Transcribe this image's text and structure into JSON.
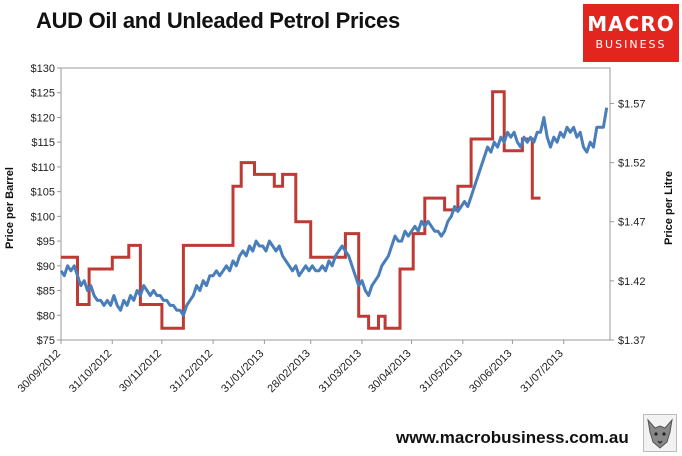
{
  "logo": {
    "line1": "MACRO",
    "line2": "BUSINESS"
  },
  "site_url": "www.macrobusiness.com.au",
  "colors": {
    "oil": "#4a7ebb",
    "petrol": "#be3a34",
    "logo_bg": "#e2261f"
  },
  "chart_data": {
    "type": "line",
    "title": "AUD Oil and Unleaded Petrol Prices",
    "ylabel_left": "Price per Barrel",
    "ylabel_right": "Price per Litre",
    "x_tick_labels": [
      "30/09/2012",
      "31/10/2012",
      "30/11/2012",
      "31/12/2012",
      "31/01/2013",
      "28/02/2013",
      "31/03/2013",
      "30/04/2013",
      "31/05/2013",
      "30/06/2013",
      "31/07/2013"
    ],
    "xlim": [
      "2012-09-30",
      "2013-08-28"
    ],
    "ylim_left": [
      75,
      130
    ],
    "ylim_right": [
      1.37,
      1.6
    ],
    "y_ticks_left": [
      "$75",
      "$80",
      "$85",
      "$90",
      "$95",
      "$100",
      "$105",
      "$110",
      "$115",
      "$120",
      "$125",
      "$130"
    ],
    "y_ticks_right": [
      "$1.37",
      "$1.42",
      "$1.47",
      "$1.52",
      "$1.57"
    ],
    "legend": "none",
    "grid": false,
    "series": [
      {
        "axis": "left",
        "points": [
          [
            "2012-09-30",
            89
          ],
          [
            "2012-10-02",
            88
          ],
          [
            "2012-10-04",
            90
          ],
          [
            "2012-10-06",
            89
          ],
          [
            "2012-10-08",
            90
          ],
          [
            "2012-10-10",
            88
          ],
          [
            "2012-10-12",
            86
          ],
          [
            "2012-10-14",
            87
          ],
          [
            "2012-10-16",
            85
          ],
          [
            "2012-10-18",
            86
          ],
          [
            "2012-10-20",
            84
          ],
          [
            "2012-10-22",
            83
          ],
          [
            "2012-10-24",
            83
          ],
          [
            "2012-10-26",
            82
          ],
          [
            "2012-10-28",
            83
          ],
          [
            "2012-10-30",
            82
          ],
          [
            "2012-11-01",
            84
          ],
          [
            "2012-11-03",
            82
          ],
          [
            "2012-11-05",
            81
          ],
          [
            "2012-11-07",
            83
          ],
          [
            "2012-11-09",
            82
          ],
          [
            "2012-11-11",
            84
          ],
          [
            "2012-11-13",
            83
          ],
          [
            "2012-11-15",
            85
          ],
          [
            "2012-11-17",
            84
          ],
          [
            "2012-11-19",
            86
          ],
          [
            "2012-11-21",
            85
          ],
          [
            "2012-11-23",
            84
          ],
          [
            "2012-11-25",
            85
          ],
          [
            "2012-11-27",
            84
          ],
          [
            "2012-11-29",
            84
          ],
          [
            "2012-12-01",
            83
          ],
          [
            "2012-12-03",
            83
          ],
          [
            "2012-12-05",
            82
          ],
          [
            "2012-12-07",
            82
          ],
          [
            "2012-12-09",
            81
          ],
          [
            "2012-12-11",
            81
          ],
          [
            "2012-12-13",
            80
          ],
          [
            "2012-12-15",
            82
          ],
          [
            "2012-12-17",
            83
          ],
          [
            "2012-12-19",
            84
          ],
          [
            "2012-12-21",
            86
          ],
          [
            "2012-12-23",
            85
          ],
          [
            "2012-12-25",
            87
          ],
          [
            "2012-12-27",
            86
          ],
          [
            "2012-12-29",
            88
          ],
          [
            "2012-12-31",
            88
          ],
          [
            "2013-01-02",
            89
          ],
          [
            "2013-01-04",
            88
          ],
          [
            "2013-01-06",
            89
          ],
          [
            "2013-01-08",
            90
          ],
          [
            "2013-01-10",
            89
          ],
          [
            "2013-01-12",
            91
          ],
          [
            "2013-01-14",
            90
          ],
          [
            "2013-01-16",
            92
          ],
          [
            "2013-01-18",
            93
          ],
          [
            "2013-01-20",
            92
          ],
          [
            "2013-01-22",
            94
          ],
          [
            "2013-01-24",
            93
          ],
          [
            "2013-01-26",
            95
          ],
          [
            "2013-01-28",
            94
          ],
          [
            "2013-01-30",
            94
          ],
          [
            "2013-02-01",
            93
          ],
          [
            "2013-02-03",
            95
          ],
          [
            "2013-02-05",
            94
          ],
          [
            "2013-02-07",
            93
          ],
          [
            "2013-02-09",
            94
          ],
          [
            "2013-02-11",
            92
          ],
          [
            "2013-02-13",
            91
          ],
          [
            "2013-02-15",
            90
          ],
          [
            "2013-02-17",
            89
          ],
          [
            "2013-02-19",
            90
          ],
          [
            "2013-02-21",
            88
          ],
          [
            "2013-02-23",
            89
          ],
          [
            "2013-02-25",
            90
          ],
          [
            "2013-02-27",
            89
          ],
          [
            "2013-03-01",
            90
          ],
          [
            "2013-03-03",
            89
          ],
          [
            "2013-03-05",
            89
          ],
          [
            "2013-03-07",
            90
          ],
          [
            "2013-03-09",
            89
          ],
          [
            "2013-03-11",
            91
          ],
          [
            "2013-03-13",
            90
          ],
          [
            "2013-03-15",
            92
          ],
          [
            "2013-03-17",
            93
          ],
          [
            "2013-03-19",
            94
          ],
          [
            "2013-03-21",
            93
          ],
          [
            "2013-03-23",
            92
          ],
          [
            "2013-03-25",
            90
          ],
          [
            "2013-03-27",
            88
          ],
          [
            "2013-03-29",
            86
          ],
          [
            "2013-03-31",
            87
          ],
          [
            "2013-04-02",
            85
          ],
          [
            "2013-04-04",
            84
          ],
          [
            "2013-04-06",
            86
          ],
          [
            "2013-04-08",
            87
          ],
          [
            "2013-04-10",
            88
          ],
          [
            "2013-04-12",
            90
          ],
          [
            "2013-04-14",
            91
          ],
          [
            "2013-04-16",
            92
          ],
          [
            "2013-04-18",
            94
          ],
          [
            "2013-04-20",
            96
          ],
          [
            "2013-04-22",
            95
          ],
          [
            "2013-04-24",
            95
          ],
          [
            "2013-04-26",
            97
          ],
          [
            "2013-04-28",
            96
          ],
          [
            "2013-04-30",
            97
          ],
          [
            "2013-05-02",
            98
          ],
          [
            "2013-05-04",
            97
          ],
          [
            "2013-05-06",
            99
          ],
          [
            "2013-05-08",
            98
          ],
          [
            "2013-05-10",
            99
          ],
          [
            "2013-05-12",
            98
          ],
          [
            "2013-05-14",
            97
          ],
          [
            "2013-05-16",
            97
          ],
          [
            "2013-05-18",
            96
          ],
          [
            "2013-05-20",
            97
          ],
          [
            "2013-05-22",
            99
          ],
          [
            "2013-05-24",
            100
          ],
          [
            "2013-05-26",
            102
          ],
          [
            "2013-05-28",
            101
          ],
          [
            "2013-05-30",
            102
          ],
          [
            "2013-06-01",
            103
          ],
          [
            "2013-06-03",
            102
          ],
          [
            "2013-06-05",
            104
          ],
          [
            "2013-06-07",
            106
          ],
          [
            "2013-06-09",
            108
          ],
          [
            "2013-06-11",
            110
          ],
          [
            "2013-06-13",
            112
          ],
          [
            "2013-06-15",
            114
          ],
          [
            "2013-06-17",
            113
          ],
          [
            "2013-06-19",
            115
          ],
          [
            "2013-06-21",
            114
          ],
          [
            "2013-06-23",
            116
          ],
          [
            "2013-06-25",
            115
          ],
          [
            "2013-06-27",
            117
          ],
          [
            "2013-06-29",
            116
          ],
          [
            "2013-07-01",
            117
          ],
          [
            "2013-07-03",
            115
          ],
          [
            "2013-07-05",
            114
          ],
          [
            "2013-07-07",
            116
          ],
          [
            "2013-07-09",
            115
          ],
          [
            "2013-07-11",
            116
          ],
          [
            "2013-07-13",
            115
          ],
          [
            "2013-07-15",
            117
          ],
          [
            "2013-07-17",
            117
          ],
          [
            "2013-07-19",
            120
          ],
          [
            "2013-07-21",
            116
          ],
          [
            "2013-07-23",
            114
          ],
          [
            "2013-07-25",
            116
          ],
          [
            "2013-07-27",
            115
          ],
          [
            "2013-07-29",
            117
          ],
          [
            "2013-07-31",
            116
          ],
          [
            "2013-08-02",
            118
          ],
          [
            "2013-08-04",
            117
          ],
          [
            "2013-08-06",
            118
          ],
          [
            "2013-08-08",
            116
          ],
          [
            "2013-08-10",
            117
          ],
          [
            "2013-08-12",
            114
          ],
          [
            "2013-08-14",
            113
          ],
          [
            "2013-08-16",
            115
          ],
          [
            "2013-08-18",
            114
          ],
          [
            "2013-08-20",
            118
          ],
          [
            "2013-08-22",
            118
          ],
          [
            "2013-08-24",
            118
          ],
          [
            "2013-08-26",
            122
          ]
        ]
      },
      {
        "axis": "right",
        "points": [
          [
            "2012-09-30",
            1.44
          ],
          [
            "2012-10-10",
            1.44
          ],
          [
            "2012-10-10",
            1.4
          ],
          [
            "2012-10-17",
            1.4
          ],
          [
            "2012-10-17",
            1.43
          ],
          [
            "2012-10-31",
            1.43
          ],
          [
            "2012-10-31",
            1.44
          ],
          [
            "2012-11-10",
            1.44
          ],
          [
            "2012-11-10",
            1.45
          ],
          [
            "2012-11-17",
            1.45
          ],
          [
            "2012-11-17",
            1.4
          ],
          [
            "2012-11-30",
            1.4
          ],
          [
            "2012-11-30",
            1.38
          ],
          [
            "2012-12-13",
            1.38
          ],
          [
            "2012-12-13",
            1.45
          ],
          [
            "2013-01-12",
            1.45
          ],
          [
            "2013-01-12",
            1.5
          ],
          [
            "2013-01-17",
            1.5
          ],
          [
            "2013-01-17",
            1.52
          ],
          [
            "2013-01-25",
            1.52
          ],
          [
            "2013-01-25",
            1.51
          ],
          [
            "2013-02-06",
            1.51
          ],
          [
            "2013-02-06",
            1.5
          ],
          [
            "2013-02-11",
            1.5
          ],
          [
            "2013-02-11",
            1.51
          ],
          [
            "2013-02-19",
            1.51
          ],
          [
            "2013-02-19",
            1.47
          ],
          [
            "2013-02-28",
            1.47
          ],
          [
            "2013-02-28",
            1.44
          ],
          [
            "2013-03-21",
            1.44
          ],
          [
            "2013-03-21",
            1.46
          ],
          [
            "2013-03-29",
            1.46
          ],
          [
            "2013-03-29",
            1.39
          ],
          [
            "2013-04-04",
            1.39
          ],
          [
            "2013-04-04",
            1.38
          ],
          [
            "2013-04-10",
            1.38
          ],
          [
            "2013-04-10",
            1.39
          ],
          [
            "2013-04-14",
            1.39
          ],
          [
            "2013-04-14",
            1.38
          ],
          [
            "2013-04-23",
            1.38
          ],
          [
            "2013-04-23",
            1.43
          ],
          [
            "2013-05-01",
            1.43
          ],
          [
            "2013-05-01",
            1.46
          ],
          [
            "2013-05-08",
            1.46
          ],
          [
            "2013-05-08",
            1.49
          ],
          [
            "2013-05-20",
            1.49
          ],
          [
            "2013-05-20",
            1.48
          ],
          [
            "2013-05-28",
            1.48
          ],
          [
            "2013-05-28",
            1.5
          ],
          [
            "2013-06-05",
            1.5
          ],
          [
            "2013-06-05",
            1.54
          ],
          [
            "2013-06-18",
            1.54
          ],
          [
            "2013-06-18",
            1.58
          ],
          [
            "2013-06-25",
            1.58
          ],
          [
            "2013-06-25",
            1.53
          ],
          [
            "2013-07-06",
            1.53
          ],
          [
            "2013-07-06",
            1.54
          ],
          [
            "2013-07-12",
            1.54
          ],
          [
            "2013-07-12",
            1.49
          ],
          [
            "2013-07-17",
            1.49
          ]
        ]
      }
    ]
  }
}
